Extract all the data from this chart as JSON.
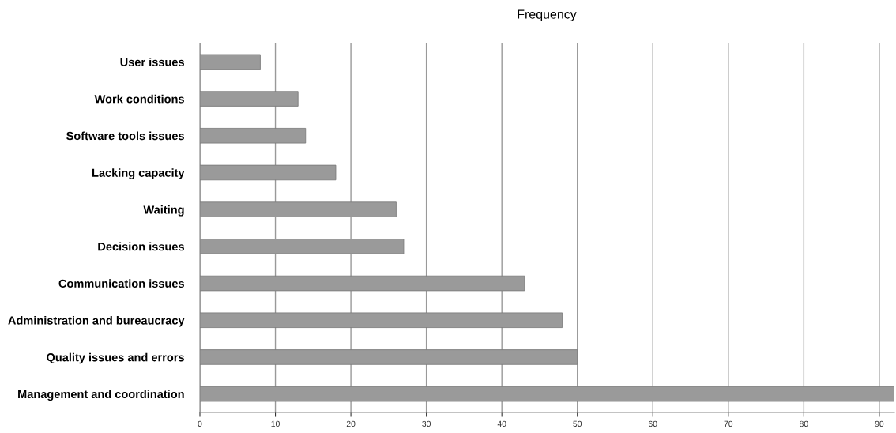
{
  "chart_data": {
    "type": "bar",
    "orientation": "horizontal",
    "title": "Frequency",
    "categories": [
      "User issues",
      "Work conditions",
      "Software tools issues",
      "Lacking capacity",
      "Waiting",
      "Decision issues",
      "Communication issues",
      "Administration and bureaucracy",
      "Quality issues and errors",
      "Management and coordination"
    ],
    "values": [
      8,
      13,
      14,
      18,
      26,
      27,
      43,
      48,
      50,
      92
    ],
    "color": "#9a9a9a",
    "xlim": [
      0,
      92
    ],
    "xticks": [
      0,
      10,
      20,
      30,
      40,
      50,
      60,
      70,
      80,
      90
    ],
    "grid": "x"
  }
}
